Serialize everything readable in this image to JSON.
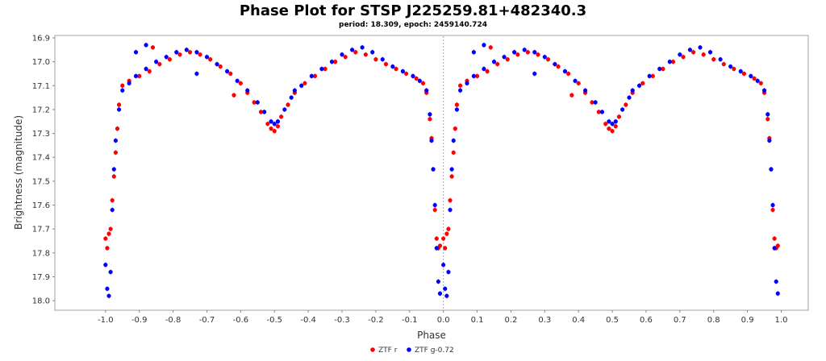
{
  "chart_data": {
    "type": "scatter",
    "title": "Phase Plot for STSP J225259.81+482340.3",
    "subtitle": "period: 18.309, epoch: 2459140.724",
    "xlabel": "Phase",
    "ylabel": "Brightness (magnitude)",
    "xlim": [
      -1.15,
      1.08
    ],
    "ylim": [
      18.04,
      16.89
    ],
    "y_inverted": true,
    "x_ticks": [
      "-1.0",
      "-0.9",
      "-0.8",
      "-0.7",
      "-0.6",
      "-0.5",
      "-0.4",
      "-0.3",
      "-0.2",
      "-0.1",
      "0.0",
      "0.1",
      "0.2",
      "0.3",
      "0.4",
      "0.5",
      "0.6",
      "0.7",
      "0.8",
      "0.9",
      "1.0"
    ],
    "y_ticks": [
      "16.9",
      "17.0",
      "17.1",
      "17.2",
      "17.3",
      "17.4",
      "17.5",
      "17.6",
      "17.7",
      "17.8",
      "17.9",
      "18.0"
    ],
    "grid": false,
    "legend_position": "bottom-center",
    "reference_line_x": 0.0,
    "series": [
      {
        "name": "ZTF r",
        "color": "#ff0000",
        "points": [
          [
            0.0,
            17.74
          ],
          [
            0.005,
            17.78
          ],
          [
            0.01,
            17.72
          ],
          [
            0.015,
            17.7
          ],
          [
            0.02,
            17.58
          ],
          [
            0.025,
            17.48
          ],
          [
            0.03,
            17.38
          ],
          [
            0.035,
            17.28
          ],
          [
            0.04,
            17.18
          ],
          [
            0.05,
            17.1
          ],
          [
            0.07,
            17.08
          ],
          [
            0.1,
            17.06
          ],
          [
            0.13,
            17.04
          ],
          [
            0.16,
            17.01
          ],
          [
            0.19,
            16.99
          ],
          [
            0.22,
            16.97
          ],
          [
            0.25,
            16.96
          ],
          [
            0.28,
            16.97
          ],
          [
            0.31,
            16.99
          ],
          [
            0.34,
            17.02
          ],
          [
            0.37,
            17.05
          ],
          [
            0.4,
            17.09
          ],
          [
            0.42,
            17.13
          ],
          [
            0.44,
            17.17
          ],
          [
            0.46,
            17.21
          ],
          [
            0.48,
            17.26
          ],
          [
            0.49,
            17.28
          ],
          [
            0.5,
            17.29
          ],
          [
            0.51,
            17.27
          ],
          [
            0.52,
            17.23
          ],
          [
            0.54,
            17.18
          ],
          [
            0.56,
            17.13
          ],
          [
            0.59,
            17.09
          ],
          [
            0.62,
            17.06
          ],
          [
            0.65,
            17.03
          ],
          [
            0.68,
            17.0
          ],
          [
            0.71,
            16.98
          ],
          [
            0.74,
            16.96
          ],
          [
            0.77,
            16.97
          ],
          [
            0.8,
            16.99
          ],
          [
            0.83,
            17.01
          ],
          [
            0.86,
            17.03
          ],
          [
            0.89,
            17.05
          ],
          [
            0.92,
            17.07
          ],
          [
            0.94,
            17.09
          ],
          [
            0.95,
            17.13
          ],
          [
            0.96,
            17.24
          ],
          [
            0.965,
            17.32
          ],
          [
            0.97,
            17.45
          ],
          [
            0.975,
            17.62
          ],
          [
            0.98,
            17.74
          ],
          [
            0.985,
            17.78
          ],
          [
            0.99,
            17.77
          ],
          [
            0.14,
            16.94
          ],
          [
            0.38,
            17.14
          ],
          [
            -1.0,
            17.74
          ],
          [
            -0.995,
            17.78
          ],
          [
            -0.99,
            17.72
          ],
          [
            -0.985,
            17.7
          ],
          [
            -0.98,
            17.58
          ],
          [
            -0.975,
            17.48
          ],
          [
            -0.97,
            17.38
          ],
          [
            -0.965,
            17.28
          ],
          [
            -0.96,
            17.18
          ],
          [
            -0.95,
            17.1
          ],
          [
            -0.93,
            17.08
          ],
          [
            -0.9,
            17.06
          ],
          [
            -0.87,
            17.04
          ],
          [
            -0.84,
            17.01
          ],
          [
            -0.81,
            16.99
          ],
          [
            -0.78,
            16.97
          ],
          [
            -0.75,
            16.96
          ],
          [
            -0.72,
            16.97
          ],
          [
            -0.69,
            16.99
          ],
          [
            -0.66,
            17.02
          ],
          [
            -0.63,
            17.05
          ],
          [
            -0.6,
            17.09
          ],
          [
            -0.58,
            17.13
          ],
          [
            -0.56,
            17.17
          ],
          [
            -0.54,
            17.21
          ],
          [
            -0.52,
            17.26
          ],
          [
            -0.51,
            17.28
          ],
          [
            -0.5,
            17.29
          ],
          [
            -0.49,
            17.27
          ],
          [
            -0.48,
            17.23
          ],
          [
            -0.46,
            17.18
          ],
          [
            -0.44,
            17.13
          ],
          [
            -0.41,
            17.09
          ],
          [
            -0.38,
            17.06
          ],
          [
            -0.35,
            17.03
          ],
          [
            -0.32,
            17.0
          ],
          [
            -0.29,
            16.98
          ],
          [
            -0.26,
            16.96
          ],
          [
            -0.23,
            16.97
          ],
          [
            -0.2,
            16.99
          ],
          [
            -0.17,
            17.01
          ],
          [
            -0.14,
            17.03
          ],
          [
            -0.11,
            17.05
          ],
          [
            -0.08,
            17.07
          ],
          [
            -0.06,
            17.09
          ],
          [
            -0.05,
            17.13
          ],
          [
            -0.04,
            17.24
          ],
          [
            -0.035,
            17.32
          ],
          [
            -0.03,
            17.45
          ],
          [
            -0.025,
            17.62
          ],
          [
            -0.02,
            17.74
          ],
          [
            -0.015,
            17.78
          ],
          [
            -0.01,
            17.77
          ],
          [
            -0.86,
            16.94
          ],
          [
            -0.62,
            17.14
          ]
        ]
      },
      {
        "name": "ZTF g-0.72",
        "color": "#0000ff",
        "points": [
          [
            0.0,
            17.85
          ],
          [
            0.005,
            17.95
          ],
          [
            0.01,
            17.98
          ],
          [
            0.015,
            17.88
          ],
          [
            0.02,
            17.62
          ],
          [
            0.025,
            17.45
          ],
          [
            0.03,
            17.33
          ],
          [
            0.04,
            17.2
          ],
          [
            0.05,
            17.12
          ],
          [
            0.07,
            17.09
          ],
          [
            0.09,
            17.06
          ],
          [
            0.12,
            17.03
          ],
          [
            0.15,
            17.0
          ],
          [
            0.18,
            16.98
          ],
          [
            0.21,
            16.96
          ],
          [
            0.24,
            16.95
          ],
          [
            0.27,
            16.96
          ],
          [
            0.3,
            16.98
          ],
          [
            0.33,
            17.01
          ],
          [
            0.36,
            17.04
          ],
          [
            0.39,
            17.08
          ],
          [
            0.42,
            17.12
          ],
          [
            0.45,
            17.17
          ],
          [
            0.47,
            17.21
          ],
          [
            0.49,
            17.25
          ],
          [
            0.5,
            17.26
          ],
          [
            0.51,
            17.25
          ],
          [
            0.53,
            17.2
          ],
          [
            0.55,
            17.15
          ],
          [
            0.58,
            17.1
          ],
          [
            0.61,
            17.06
          ],
          [
            0.64,
            17.03
          ],
          [
            0.67,
            17.0
          ],
          [
            0.7,
            16.97
          ],
          [
            0.73,
            16.95
          ],
          [
            0.76,
            16.94
          ],
          [
            0.79,
            16.96
          ],
          [
            0.82,
            16.99
          ],
          [
            0.85,
            17.02
          ],
          [
            0.88,
            17.04
          ],
          [
            0.91,
            17.06
          ],
          [
            0.93,
            17.08
          ],
          [
            0.95,
            17.12
          ],
          [
            0.96,
            17.22
          ],
          [
            0.965,
            17.33
          ],
          [
            0.97,
            17.45
          ],
          [
            0.975,
            17.6
          ],
          [
            0.98,
            17.78
          ],
          [
            0.985,
            17.92
          ],
          [
            0.99,
            17.97
          ],
          [
            0.09,
            16.96
          ],
          [
            0.12,
            16.93
          ],
          [
            0.27,
            17.05
          ],
          [
            0.56,
            17.12
          ],
          [
            -1.0,
            17.85
          ],
          [
            -0.995,
            17.95
          ],
          [
            -0.99,
            17.98
          ],
          [
            -0.985,
            17.88
          ],
          [
            -0.98,
            17.62
          ],
          [
            -0.975,
            17.45
          ],
          [
            -0.97,
            17.33
          ],
          [
            -0.96,
            17.2
          ],
          [
            -0.95,
            17.12
          ],
          [
            -0.93,
            17.09
          ],
          [
            -0.91,
            17.06
          ],
          [
            -0.88,
            17.03
          ],
          [
            -0.85,
            17.0
          ],
          [
            -0.82,
            16.98
          ],
          [
            -0.79,
            16.96
          ],
          [
            -0.76,
            16.95
          ],
          [
            -0.73,
            16.96
          ],
          [
            -0.7,
            16.98
          ],
          [
            -0.67,
            17.01
          ],
          [
            -0.64,
            17.04
          ],
          [
            -0.61,
            17.08
          ],
          [
            -0.58,
            17.12
          ],
          [
            -0.55,
            17.17
          ],
          [
            -0.53,
            17.21
          ],
          [
            -0.51,
            17.25
          ],
          [
            -0.5,
            17.26
          ],
          [
            -0.49,
            17.25
          ],
          [
            -0.47,
            17.2
          ],
          [
            -0.45,
            17.15
          ],
          [
            -0.42,
            17.1
          ],
          [
            -0.39,
            17.06
          ],
          [
            -0.36,
            17.03
          ],
          [
            -0.33,
            17.0
          ],
          [
            -0.3,
            16.97
          ],
          [
            -0.27,
            16.95
          ],
          [
            -0.24,
            16.94
          ],
          [
            -0.21,
            16.96
          ],
          [
            -0.18,
            16.99
          ],
          [
            -0.15,
            17.02
          ],
          [
            -0.12,
            17.04
          ],
          [
            -0.09,
            17.06
          ],
          [
            -0.07,
            17.08
          ],
          [
            -0.05,
            17.12
          ],
          [
            -0.04,
            17.22
          ],
          [
            -0.035,
            17.33
          ],
          [
            -0.03,
            17.45
          ],
          [
            -0.025,
            17.6
          ],
          [
            -0.02,
            17.78
          ],
          [
            -0.015,
            17.92
          ],
          [
            -0.01,
            17.97
          ],
          [
            -0.91,
            16.96
          ],
          [
            -0.88,
            16.93
          ],
          [
            -0.73,
            17.05
          ],
          [
            -0.44,
            17.12
          ]
        ]
      }
    ]
  }
}
